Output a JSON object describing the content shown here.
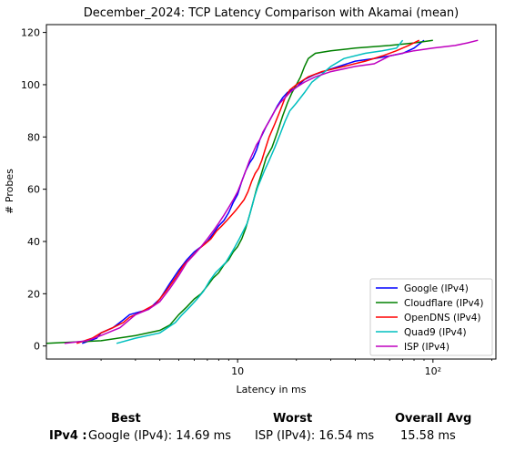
{
  "chart_data": {
    "type": "line",
    "title": "December_2024: TCP Latency Comparison with Akamai (mean)",
    "xlabel": "Latency in ms",
    "ylabel": "# Probes",
    "x_scale": "log",
    "xlim": [
      1.05,
      210
    ],
    "ylim": [
      -5,
      123
    ],
    "x_ticks": [
      {
        "value": 10,
        "label": "10"
      },
      {
        "value": 100,
        "label": "10²"
      }
    ],
    "y_ticks": [
      0,
      20,
      40,
      60,
      80,
      100,
      120
    ],
    "grid": false,
    "legend_position": "lower right",
    "series": [
      {
        "name": "Google (IPv4)",
        "color": "#0000ff",
        "points": [
          [
            1.6,
            1
          ],
          [
            1.9,
            3
          ],
          [
            2.0,
            5
          ],
          [
            2.3,
            7
          ],
          [
            2.6,
            10
          ],
          [
            2.8,
            12
          ],
          [
            3.5,
            14
          ],
          [
            4.0,
            18
          ],
          [
            4.5,
            24
          ],
          [
            5.0,
            29
          ],
          [
            5.5,
            33
          ],
          [
            6.0,
            36
          ],
          [
            6.5,
            38
          ],
          [
            7.0,
            40
          ],
          [
            7.5,
            43
          ],
          [
            8.0,
            46
          ],
          [
            8.5,
            48
          ],
          [
            9.0,
            51
          ],
          [
            9.5,
            55
          ],
          [
            10.0,
            58
          ],
          [
            10.5,
            63
          ],
          [
            11.0,
            67
          ],
          [
            11.5,
            70
          ],
          [
            12.0,
            72
          ],
          [
            12.5,
            75
          ],
          [
            13.0,
            79
          ],
          [
            14.0,
            84
          ],
          [
            15.0,
            88
          ],
          [
            16.0,
            92
          ],
          [
            17.0,
            95
          ],
          [
            18.0,
            97
          ],
          [
            20.0,
            99
          ],
          [
            22.0,
            102
          ],
          [
            25.0,
            104
          ],
          [
            30.0,
            106
          ],
          [
            40.0,
            109
          ],
          [
            50.0,
            110
          ],
          [
            60.0,
            111
          ],
          [
            70.0,
            112
          ],
          [
            80.0,
            114
          ],
          [
            90.0,
            117
          ]
        ]
      },
      {
        "name": "Cloudflare (IPv4)",
        "color": "#008000",
        "points": [
          [
            1.05,
            1
          ],
          [
            2.0,
            2
          ],
          [
            3.0,
            4
          ],
          [
            4.0,
            6
          ],
          [
            4.5,
            8
          ],
          [
            5.0,
            12
          ],
          [
            5.5,
            15
          ],
          [
            6.0,
            18
          ],
          [
            6.5,
            20
          ],
          [
            7.0,
            23
          ],
          [
            7.5,
            26
          ],
          [
            8.0,
            28
          ],
          [
            8.5,
            31
          ],
          [
            9.0,
            33
          ],
          [
            9.5,
            36
          ],
          [
            10.0,
            38
          ],
          [
            10.5,
            41
          ],
          [
            11.0,
            45
          ],
          [
            11.5,
            50
          ],
          [
            12.0,
            55
          ],
          [
            12.5,
            60
          ],
          [
            13.0,
            64
          ],
          [
            13.5,
            68
          ],
          [
            14.0,
            72
          ],
          [
            15.0,
            76
          ],
          [
            16.0,
            82
          ],
          [
            17.0,
            88
          ],
          [
            18.0,
            93
          ],
          [
            19.0,
            97
          ],
          [
            20.0,
            100
          ],
          [
            21.0,
            103
          ],
          [
            22.0,
            107
          ],
          [
            23.0,
            110
          ],
          [
            25.0,
            112
          ],
          [
            30.0,
            113
          ],
          [
            40.0,
            114
          ],
          [
            60.0,
            115
          ],
          [
            80.0,
            116
          ],
          [
            100.0,
            117
          ]
        ]
      },
      {
        "name": "OpenDNS (IPv4)",
        "color": "#ff0000",
        "points": [
          [
            1.5,
            1
          ],
          [
            1.8,
            3
          ],
          [
            2.0,
            5
          ],
          [
            2.3,
            7
          ],
          [
            2.6,
            9
          ],
          [
            2.8,
            11
          ],
          [
            3.2,
            13
          ],
          [
            3.8,
            16
          ],
          [
            4.3,
            21
          ],
          [
            4.8,
            26
          ],
          [
            5.3,
            31
          ],
          [
            5.8,
            34
          ],
          [
            6.3,
            37
          ],
          [
            6.8,
            39
          ],
          [
            7.3,
            41
          ],
          [
            7.8,
            44
          ],
          [
            8.3,
            46
          ],
          [
            8.8,
            48
          ],
          [
            9.3,
            50
          ],
          [
            9.8,
            52
          ],
          [
            10.3,
            54
          ],
          [
            10.8,
            56
          ],
          [
            11.3,
            59
          ],
          [
            11.8,
            63
          ],
          [
            12.3,
            66
          ],
          [
            12.8,
            68
          ],
          [
            13.3,
            71
          ],
          [
            13.8,
            75
          ],
          [
            14.5,
            80
          ],
          [
            15.5,
            85
          ],
          [
            16.5,
            90
          ],
          [
            17.5,
            95
          ],
          [
            18.5,
            98
          ],
          [
            20.0,
            100
          ],
          [
            23.0,
            103
          ],
          [
            27.0,
            105
          ],
          [
            35.0,
            107
          ],
          [
            45.0,
            109
          ],
          [
            55.0,
            111
          ],
          [
            65.0,
            113
          ],
          [
            75.0,
            115
          ],
          [
            85.0,
            117
          ]
        ]
      },
      {
        "name": "Quad9 (IPv4)",
        "color": "#00bfbf",
        "points": [
          [
            2.4,
            1
          ],
          [
            3.0,
            3
          ],
          [
            4.0,
            5
          ],
          [
            4.8,
            9
          ],
          [
            5.2,
            12
          ],
          [
            5.7,
            15
          ],
          [
            6.2,
            18
          ],
          [
            6.7,
            21
          ],
          [
            7.2,
            25
          ],
          [
            7.7,
            28
          ],
          [
            8.2,
            30
          ],
          [
            8.7,
            32
          ],
          [
            9.2,
            35
          ],
          [
            9.7,
            38
          ],
          [
            10.2,
            41
          ],
          [
            10.7,
            44
          ],
          [
            11.2,
            47
          ],
          [
            11.7,
            52
          ],
          [
            12.2,
            57
          ],
          [
            12.7,
            61
          ],
          [
            13.2,
            64
          ],
          [
            13.7,
            67
          ],
          [
            14.5,
            71
          ],
          [
            15.5,
            76
          ],
          [
            16.5,
            81
          ],
          [
            17.5,
            86
          ],
          [
            18.5,
            90
          ],
          [
            20.0,
            93
          ],
          [
            22.0,
            97
          ],
          [
            24.0,
            101
          ],
          [
            27.0,
            104
          ],
          [
            30.0,
            107
          ],
          [
            35.0,
            110
          ],
          [
            45.0,
            112
          ],
          [
            55.0,
            113
          ],
          [
            65.0,
            114
          ],
          [
            70.0,
            117
          ]
        ]
      },
      {
        "name": "ISP (IPv4)",
        "color": "#bf00bf",
        "points": [
          [
            1.3,
            1
          ],
          [
            1.7,
            2
          ],
          [
            2.0,
            4
          ],
          [
            2.5,
            7
          ],
          [
            3.0,
            12
          ],
          [
            3.5,
            14
          ],
          [
            4.0,
            17
          ],
          [
            4.5,
            22
          ],
          [
            5.0,
            27
          ],
          [
            5.5,
            32
          ],
          [
            6.0,
            35
          ],
          [
            6.5,
            38
          ],
          [
            7.0,
            41
          ],
          [
            7.5,
            44
          ],
          [
            8.0,
            47
          ],
          [
            8.5,
            50
          ],
          [
            9.0,
            53
          ],
          [
            9.5,
            56
          ],
          [
            10.0,
            59
          ],
          [
            10.5,
            63
          ],
          [
            11.0,
            67
          ],
          [
            11.5,
            71
          ],
          [
            12.0,
            74
          ],
          [
            12.5,
            77
          ],
          [
            13.0,
            79
          ],
          [
            13.5,
            82
          ],
          [
            14.5,
            86
          ],
          [
            15.5,
            90
          ],
          [
            16.5,
            93
          ],
          [
            17.5,
            95
          ],
          [
            18.5,
            97
          ],
          [
            20.0,
            99
          ],
          [
            22.0,
            101
          ],
          [
            25.0,
            103
          ],
          [
            30.0,
            105
          ],
          [
            40.0,
            107
          ],
          [
            50.0,
            108
          ],
          [
            60.0,
            111
          ],
          [
            80.0,
            113
          ],
          [
            100.0,
            114
          ],
          [
            130.0,
            115
          ],
          [
            150.0,
            116
          ],
          [
            170.0,
            117
          ]
        ]
      }
    ]
  },
  "summary": {
    "best_header": "Best",
    "worst_header": "Worst",
    "avg_header": "Overall Avg",
    "row_label": "IPv4 :",
    "best_value": "Google (IPv4): 14.69 ms",
    "worst_value": "ISP (IPv4): 16.54 ms",
    "avg_value": "15.58 ms"
  }
}
